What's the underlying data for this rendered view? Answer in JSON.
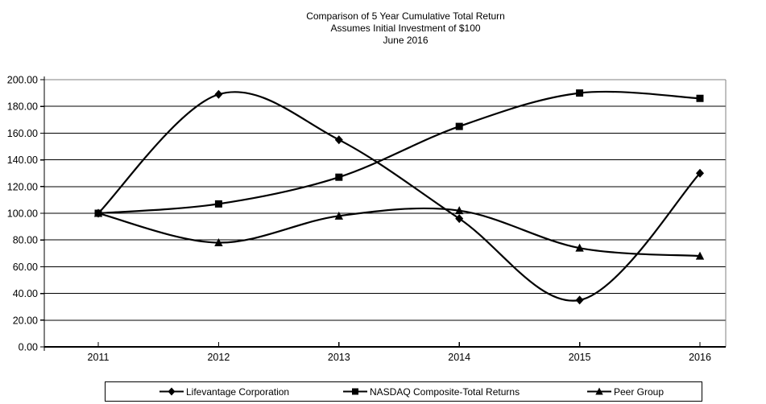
{
  "title": {
    "line1": "Comparison of 5 Year Cumulative Total Return",
    "line2": "Assumes Initial Investment of $100",
    "line3": "June 2016"
  },
  "chart_data": {
    "type": "line",
    "title": "Comparison of 5 Year Cumulative Total Return",
    "subtitle": "Assumes Initial Investment of $100",
    "date_label": "June 2016",
    "categories": [
      "2011",
      "2012",
      "2013",
      "2014",
      "2015",
      "2016"
    ],
    "series": [
      {
        "name": "Lifevantage Corporation",
        "marker": "diamond",
        "values": [
          100,
          189,
          155,
          96,
          35,
          130
        ]
      },
      {
        "name": "NASDAQ Composite-Total Returns",
        "marker": "square",
        "values": [
          100,
          107,
          127,
          165,
          190,
          186
        ]
      },
      {
        "name": "Peer Group",
        "marker": "triangle",
        "values": [
          100,
          78,
          98,
          102,
          74,
          68
        ]
      }
    ],
    "xlabel": "",
    "ylabel": "",
    "ylim": [
      0,
      200
    ],
    "ytick_step": 20,
    "ytick_labels": [
      "0.00",
      "20.00",
      "40.00",
      "60.00",
      "80.00",
      "100.00",
      "120.00",
      "140.00",
      "160.00",
      "180.00",
      "200.00"
    ],
    "grid": true,
    "smooth": true,
    "legend_position": "bottom",
    "line_color": "#000000",
    "plot_border_color": "#808080",
    "text_color": "#000000"
  }
}
